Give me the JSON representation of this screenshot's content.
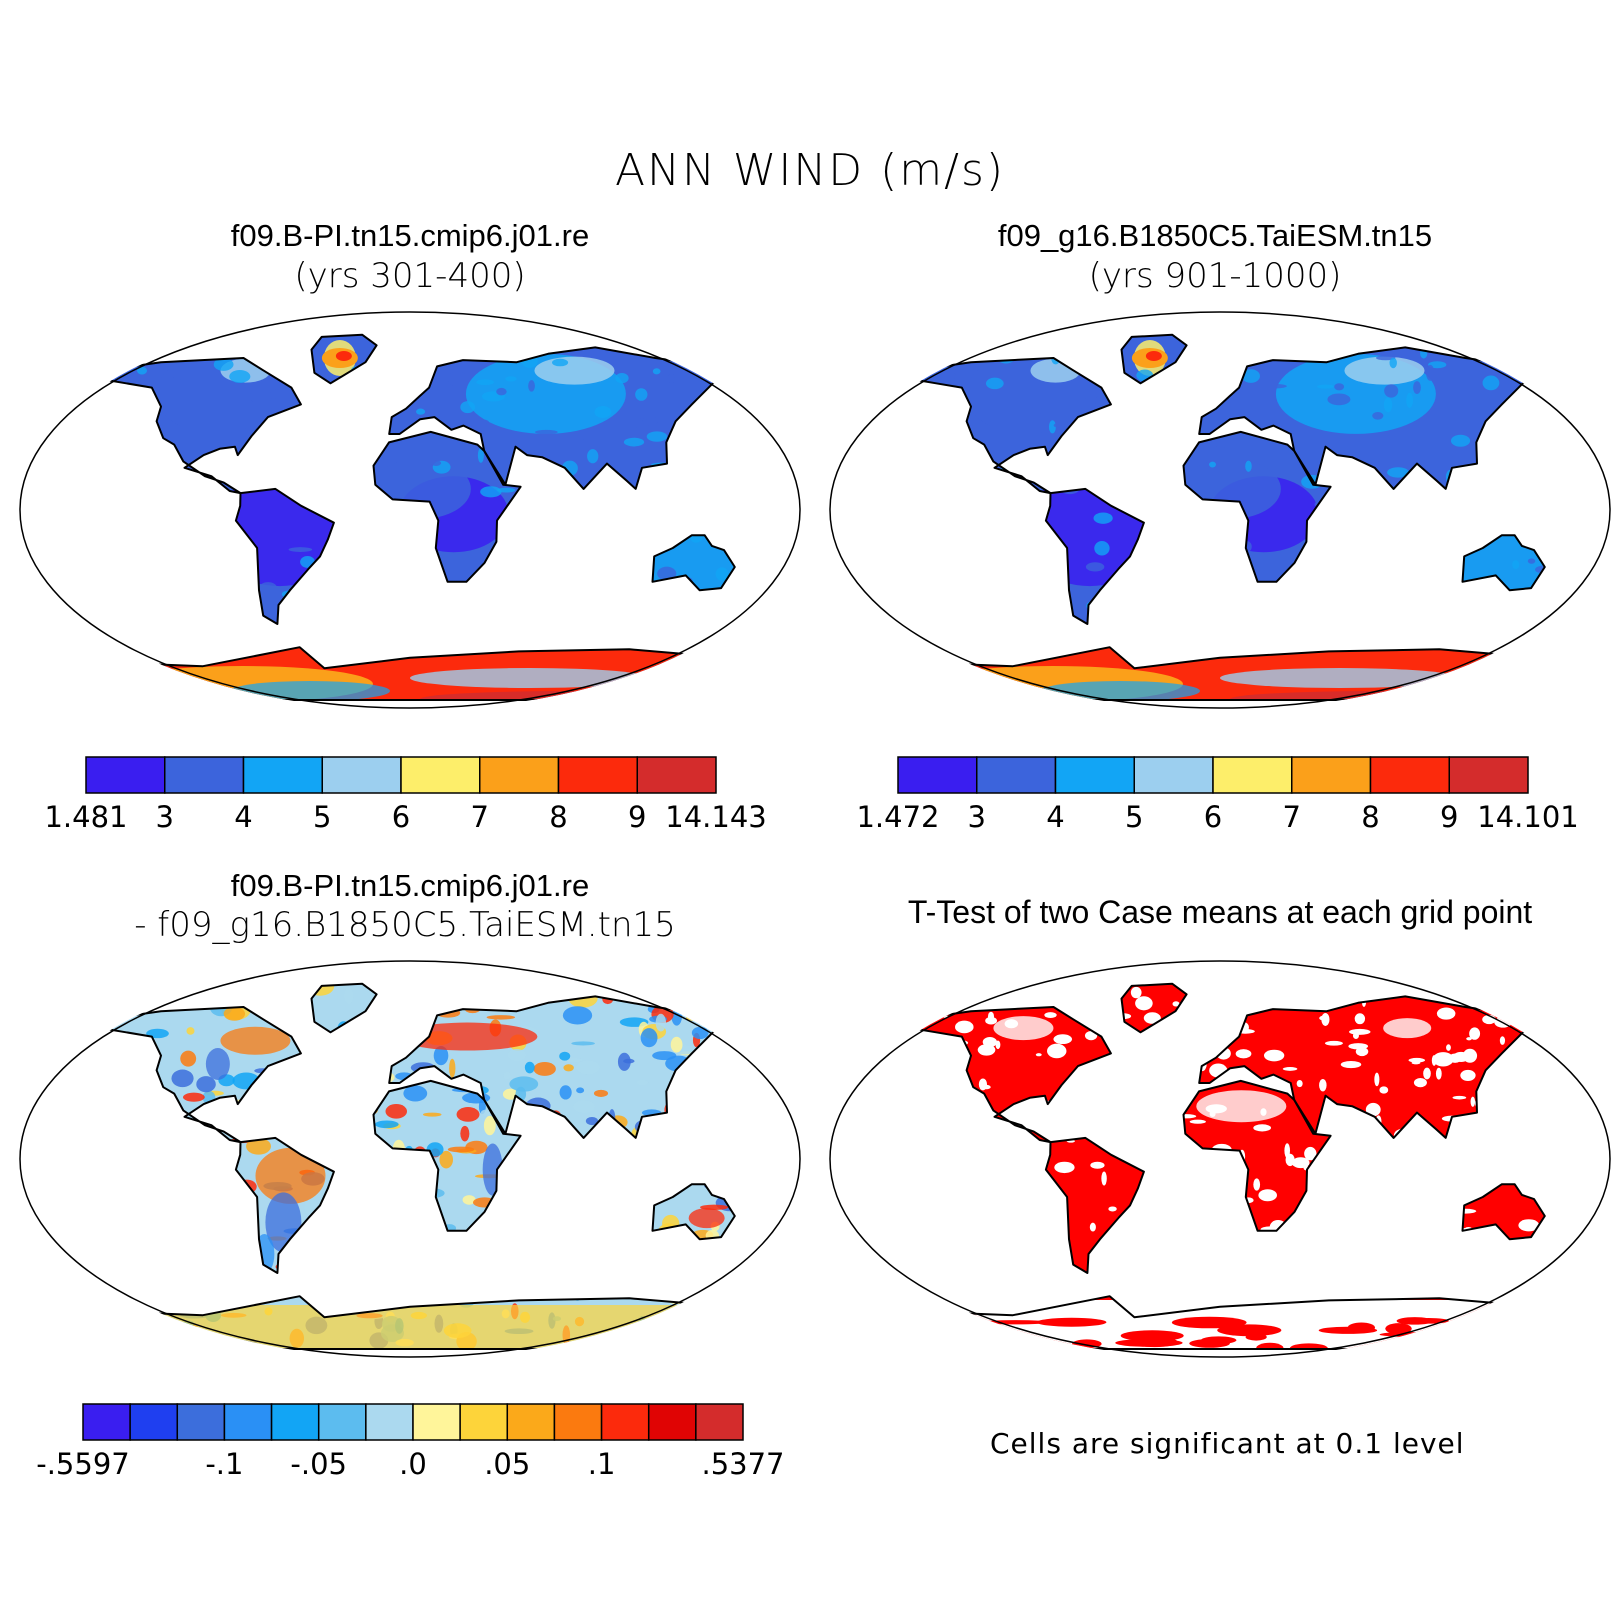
{
  "figure": {
    "title": "ANN WIND (m/s)"
  },
  "panels": [
    {
      "title": "f09.B-PI.tn15.cmip6.j01.re",
      "subtitle": "(yrs 301-400)",
      "colorbar": {
        "colors": [
          "#3a1ef0",
          "#3c64dc",
          "#12a5f5",
          "#9ccfef",
          "#fdee6a",
          "#fba01a",
          "#fc2a0c",
          "#d42c2c"
        ],
        "labels": [
          "1.481",
          "3",
          "4",
          "5",
          "6",
          "7",
          "8",
          "9",
          "14.143"
        ]
      }
    },
    {
      "title": "f09_g16.B1850C5.TaiESM.tn15",
      "subtitle": "(yrs 901-1000)",
      "colorbar": {
        "colors": [
          "#3a1ef0",
          "#3c64dc",
          "#12a5f5",
          "#9ccfef",
          "#fdee6a",
          "#fba01a",
          "#fc2a0c",
          "#d42c2c"
        ],
        "labels": [
          "1.472",
          "3",
          "4",
          "5",
          "6",
          "7",
          "8",
          "9",
          "14.101"
        ]
      }
    },
    {
      "title": "f09.B-PI.tn15.cmip6.j01.re",
      "subtitle": "- f09_g16.B1850C5.TaiESM.tn15",
      "colorbar": {
        "colors": [
          "#3a1ef0",
          "#1f3ff0",
          "#3c6edc",
          "#2a90f5",
          "#12a5f5",
          "#5cbcef",
          "#abd9ef",
          "#fff59a",
          "#fdd43a",
          "#fba91a",
          "#fb7a0f",
          "#fc2a0c",
          "#e00404",
          "#d42c2c"
        ],
        "labels": [
          "-.5597",
          "-.1",
          "-.05",
          ".0",
          ".05",
          ".1",
          ".5377"
        ],
        "label_positions": [
          0,
          3,
          5,
          7,
          9,
          11,
          14
        ]
      }
    },
    {
      "title": "T-Test of two Case means at each grid point",
      "note": "Cells are significant at 0.1 level",
      "fill_color": "#ff0000"
    }
  ]
}
